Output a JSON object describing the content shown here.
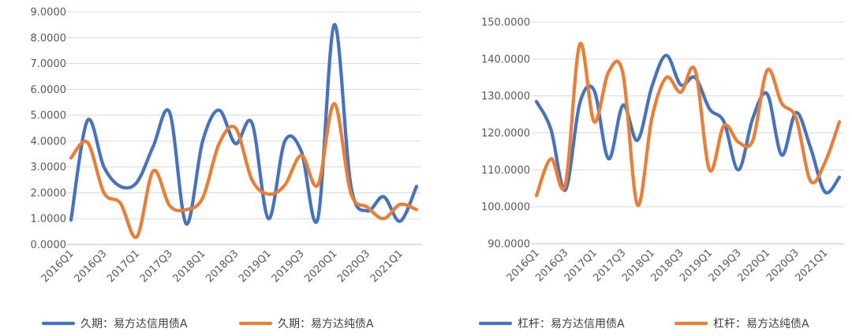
{
  "chart_data": [
    {
      "type": "line",
      "categories": [
        "2016Q1",
        "2016Q2",
        "2016Q3",
        "2016Q4",
        "2017Q1",
        "2017Q2",
        "2017Q3",
        "2017Q4",
        "2018Q1",
        "2018Q2",
        "2018Q3",
        "2018Q4",
        "2019Q1",
        "2019Q2",
        "2019Q3",
        "2019Q4",
        "2020Q1",
        "2020Q2",
        "2020Q3",
        "2020Q4",
        "2021Q1",
        "2021Q2"
      ],
      "x_tick_labels": [
        "2016Q1",
        "2016Q3",
        "2017Q1",
        "2017Q3",
        "2018Q1",
        "2018Q3",
        "2019Q1",
        "2019Q3",
        "2020Q1",
        "2020Q3",
        "2021Q1"
      ],
      "y_tick_labels": [
        "0.0000",
        "1.0000",
        "2.0000",
        "3.0000",
        "4.0000",
        "5.0000",
        "6.0000",
        "7.0000",
        "8.0000",
        "9.0000"
      ],
      "ylim": [
        0,
        9
      ],
      "grid": true,
      "legend_position": "bottom",
      "series": [
        {
          "name": "久期：易方达信用债A",
          "color": "#4472C4",
          "values": [
            0.95,
            4.8,
            3.0,
            2.25,
            2.4,
            3.8,
            5.1,
            0.8,
            4.0,
            5.2,
            3.9,
            4.7,
            1.0,
            4.0,
            3.6,
            1.0,
            8.5,
            2.3,
            1.3,
            1.85,
            0.9,
            2.25
          ]
        },
        {
          "name": "久期：易方达纯债A",
          "color": "#ED7D31",
          "values": [
            3.35,
            3.95,
            2.0,
            1.6,
            0.3,
            2.85,
            1.5,
            1.35,
            1.8,
            3.9,
            4.5,
            2.5,
            1.95,
            2.3,
            3.45,
            2.3,
            5.45,
            2.0,
            1.45,
            1.0,
            1.55,
            1.35
          ]
        }
      ]
    },
    {
      "type": "line",
      "categories": [
        "2016Q1",
        "2016Q2",
        "2016Q3",
        "2016Q4",
        "2017Q1",
        "2017Q2",
        "2017Q3",
        "2017Q4",
        "2018Q1",
        "2018Q2",
        "2018Q3",
        "2018Q4",
        "2019Q1",
        "2019Q2",
        "2019Q3",
        "2019Q4",
        "2020Q1",
        "2020Q2",
        "2020Q3",
        "2020Q4",
        "2021Q1",
        "2021Q2"
      ],
      "x_tick_labels": [
        "2016Q1",
        "2016Q3",
        "2017Q1",
        "2017Q3",
        "2018Q1",
        "2018Q3",
        "2019Q1",
        "2019Q3",
        "2020Q1",
        "2020Q3",
        "2021Q1"
      ],
      "y_tick_labels": [
        "90.0000",
        "100.0000",
        "110.0000",
        "120.0000",
        "130.0000",
        "140.0000",
        "150.0000"
      ],
      "ylim": [
        90,
        150
      ],
      "grid": true,
      "legend_position": "bottom",
      "series": [
        {
          "name": "杠杆：易方达信用债A",
          "color": "#4472C4",
          "values": [
            128.5,
            121.0,
            104.5,
            128.0,
            131.5,
            113.0,
            127.5,
            118.0,
            132.5,
            141.0,
            133.0,
            135.0,
            126.5,
            123.0,
            110.0,
            124.0,
            130.5,
            114.0,
            125.5,
            116.0,
            104.0,
            108.0
          ]
        },
        {
          "name": "杠杆：易方达纯债A",
          "color": "#ED7D31",
          "values": [
            103.0,
            113.0,
            106.0,
            144.0,
            123.0,
            136.5,
            136.0,
            100.5,
            124.0,
            135.0,
            131.0,
            137.0,
            110.0,
            122.0,
            117.5,
            118.0,
            137.0,
            128.0,
            124.0,
            107.0,
            112.0,
            123.0
          ]
        }
      ]
    }
  ]
}
